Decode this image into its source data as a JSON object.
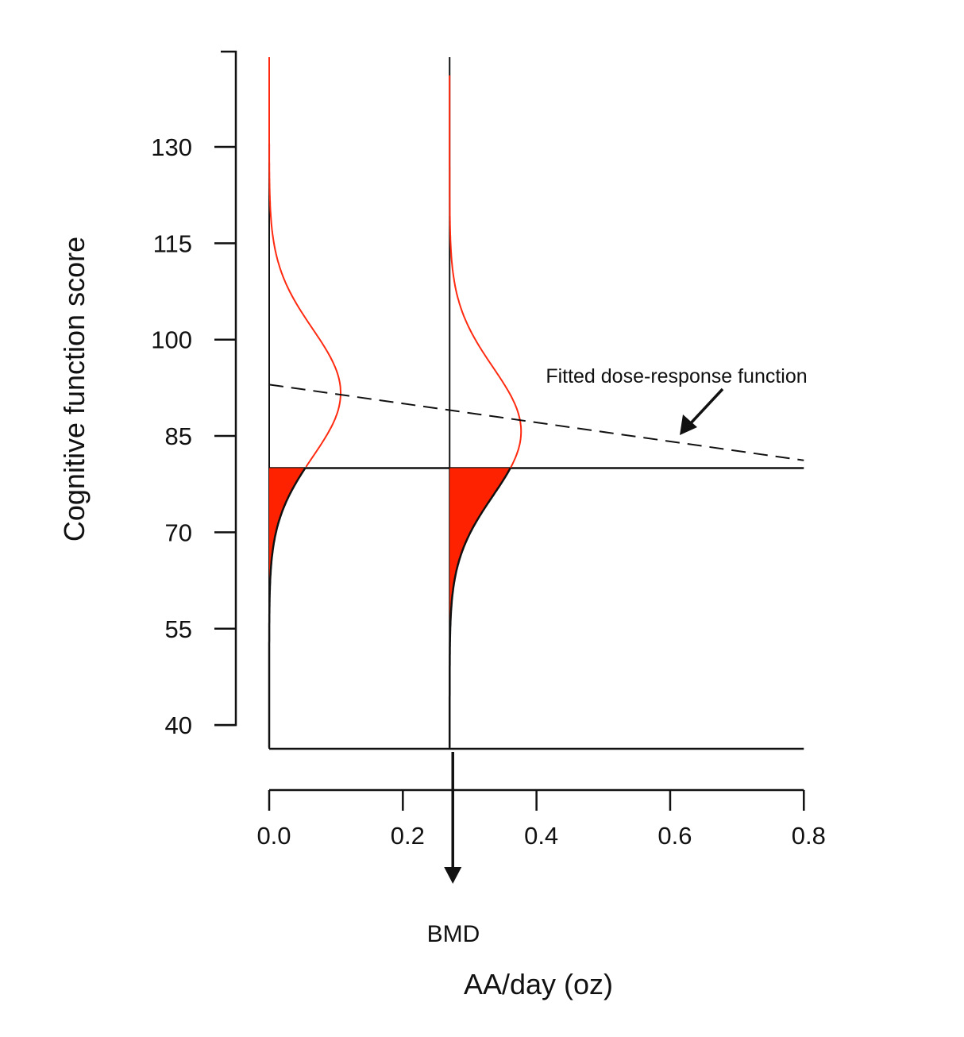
{
  "chart_data": {
    "type": "line",
    "title": "",
    "xlabel": "AA/day (oz)",
    "ylabel": "Cognitive function score",
    "x_ticks": [
      0.0,
      0.2,
      0.4,
      0.6,
      0.8
    ],
    "x_tick_labels": [
      "0.0",
      "0.2",
      "0.4",
      "0.6",
      "0.8"
    ],
    "y_ticks": [
      130,
      115,
      100,
      85,
      70,
      55,
      40
    ],
    "y_tick_labels": [
      "130",
      "115",
      "100",
      "85",
      "70",
      "55",
      "40"
    ],
    "xlim": [
      0,
      0.8
    ],
    "ylim": [
      36.5,
      145
    ],
    "fitted_line": {
      "name": "Fitted dose-response function",
      "x": [
        0,
        0.8
      ],
      "y": [
        93,
        81.2
      ],
      "style": "dashed"
    },
    "threshold": 80,
    "bmd": 0.27,
    "bmd_label": "BMD",
    "distributions": [
      {
        "dose": 0.0,
        "mean": 91.7,
        "sd": 10
      },
      {
        "dose": 0.27,
        "mean": 85.7,
        "sd": 10
      }
    ],
    "annotation": "Fitted dose-response function",
    "colors": {
      "curve": "#ff2a10",
      "fill": "#ff2200",
      "axis": "#111111"
    }
  }
}
